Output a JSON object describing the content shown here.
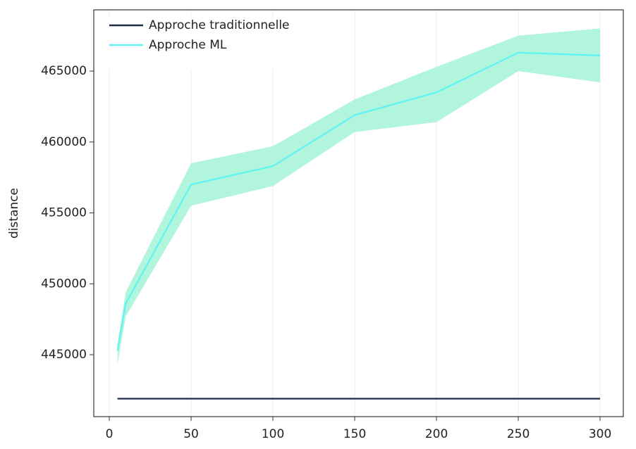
{
  "chart_data": {
    "type": "line",
    "ylabel": "distance",
    "xlim": [
      -9.5,
      314.2
    ],
    "ylim": [
      440633,
      469318
    ],
    "xticks": [
      0,
      50,
      100,
      150,
      200,
      250,
      300
    ],
    "yticks": [
      445000,
      450000,
      455000,
      460000,
      465000
    ],
    "xgrid": true,
    "legend": "upper left",
    "series": [
      {
        "name": "Approche traditionnelle",
        "color": "#1f2a44",
        "x": [
          5,
          300
        ],
        "values": [
          441900,
          441900
        ]
      },
      {
        "name": "Approche ML",
        "color": "#5ff3f5",
        "band_color": "#b0f5dc",
        "x": [
          5,
          10,
          50,
          100,
          150,
          200,
          250,
          300
        ],
        "values": [
          445300,
          448600,
          457000,
          458300,
          461900,
          463500,
          466300,
          466100
        ],
        "lower": [
          444350,
          447700,
          455500,
          456900,
          460700,
          461400,
          465000,
          464200
        ],
        "upper": [
          445700,
          449400,
          458500,
          459700,
          463000,
          465300,
          467500,
          468000
        ]
      }
    ]
  }
}
